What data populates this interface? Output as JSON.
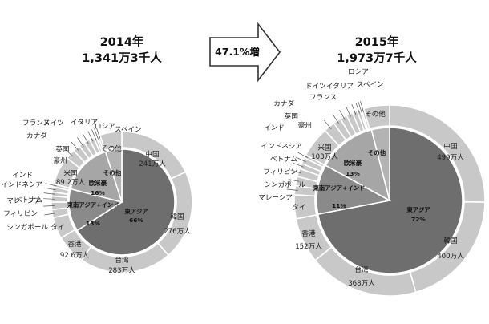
{
  "arrow_label": "47.1%増",
  "chart_data": [
    {
      "type": "pie",
      "title": "2014年",
      "subtitle": "1,341万3千人",
      "total": 1341.3,
      "unit": "万人",
      "outer_ring": [
        {
          "name": "中国",
          "value": 241,
          "value_label": "241万人"
        },
        {
          "name": "韓国",
          "value": 276,
          "value_label": "276万人"
        },
        {
          "name": "台湾",
          "value": 283,
          "value_label": "283万人"
        },
        {
          "name": "香港",
          "value": 92.6,
          "value_label": "92.6万人"
        },
        {
          "name": "タイ",
          "value": 65.8,
          "value_label": ""
        },
        {
          "name": "マレーシア",
          "value": 24.9,
          "value_label": ""
        },
        {
          "name": "シンガポール",
          "value": 22.8,
          "value_label": ""
        },
        {
          "name": "フィリピン",
          "value": 18.4,
          "value_label": ""
        },
        {
          "name": "ベトナム",
          "value": 12.4,
          "value_label": ""
        },
        {
          "name": "インドネシア",
          "value": 15.9,
          "value_label": ""
        },
        {
          "name": "インド",
          "value": 8.8,
          "value_label": ""
        },
        {
          "name": "米国",
          "value": 89.2,
          "value_label": "89.2万人"
        },
        {
          "name": "豪州",
          "value": 30.3,
          "value_label": ""
        },
        {
          "name": "英国",
          "value": 22,
          "value_label": ""
        },
        {
          "name": "カナダ",
          "value": 18.3,
          "value_label": ""
        },
        {
          "name": "フランス",
          "value": 17.9,
          "value_label": ""
        },
        {
          "name": "ドイツ",
          "value": 14,
          "value_label": ""
        },
        {
          "name": "イタリア",
          "value": 8.1,
          "value_label": ""
        },
        {
          "name": "ロシア",
          "value": 6.4,
          "value_label": ""
        },
        {
          "name": "スペイン",
          "value": 6.1,
          "value_label": ""
        },
        {
          "name": "その他",
          "value": 67.3,
          "value_label": ""
        }
      ],
      "inner_ring": [
        {
          "name": "東アジア",
          "value": 66,
          "value_label": "66%"
        },
        {
          "name": "東南アジア+インド",
          "value": 13,
          "value_label": "13%"
        },
        {
          "name": "欧米豪",
          "value": 16,
          "value_label": "16%"
        },
        {
          "name": "その他",
          "value": 5,
          "value_label": ""
        }
      ]
    },
    {
      "type": "pie",
      "title": "2015年",
      "subtitle": "1,973万7千人",
      "total": 1973.7,
      "unit": "万人",
      "outer_ring": [
        {
          "name": "中国",
          "value": 499,
          "value_label": "499万人"
        },
        {
          "name": "韓国",
          "value": 400,
          "value_label": "400万人"
        },
        {
          "name": "台湾",
          "value": 368,
          "value_label": "368万人"
        },
        {
          "name": "香港",
          "value": 152,
          "value_label": "152万人"
        },
        {
          "name": "タイ",
          "value": 79.7,
          "value_label": ""
        },
        {
          "name": "マレーシア",
          "value": 30.5,
          "value_label": ""
        },
        {
          "name": "シンガポール",
          "value": 30.9,
          "value_label": ""
        },
        {
          "name": "フィリピン",
          "value": 26.8,
          "value_label": ""
        },
        {
          "name": "ベトナム",
          "value": 18.5,
          "value_label": ""
        },
        {
          "name": "インドネシア",
          "value": 20.5,
          "value_label": ""
        },
        {
          "name": "インド",
          "value": 10.3,
          "value_label": ""
        },
        {
          "name": "米国",
          "value": 103,
          "value_label": "103万人"
        },
        {
          "name": "豪州",
          "value": 37.6,
          "value_label": ""
        },
        {
          "name": "英国",
          "value": 25.8,
          "value_label": ""
        },
        {
          "name": "カナダ",
          "value": 23.1,
          "value_label": ""
        },
        {
          "name": "フランス",
          "value": 21.4,
          "value_label": ""
        },
        {
          "name": "ドイツ",
          "value": 16.3,
          "value_label": ""
        },
        {
          "name": "イタリア",
          "value": 10.3,
          "value_label": ""
        },
        {
          "name": "ロシア",
          "value": 5.4,
          "value_label": ""
        },
        {
          "name": "スペイン",
          "value": 7.7,
          "value_label": ""
        },
        {
          "name": "その他",
          "value": 86.2,
          "value_label": ""
        }
      ],
      "inner_ring": [
        {
          "name": "東アジア",
          "value": 72,
          "value_label": "72%"
        },
        {
          "name": "東南アジア+インド",
          "value": 11,
          "value_label": "11%"
        },
        {
          "name": "欧米豪",
          "value": 13,
          "value_label": "13%"
        },
        {
          "name": "その他",
          "value": 4,
          "value_label": ""
        }
      ]
    }
  ]
}
